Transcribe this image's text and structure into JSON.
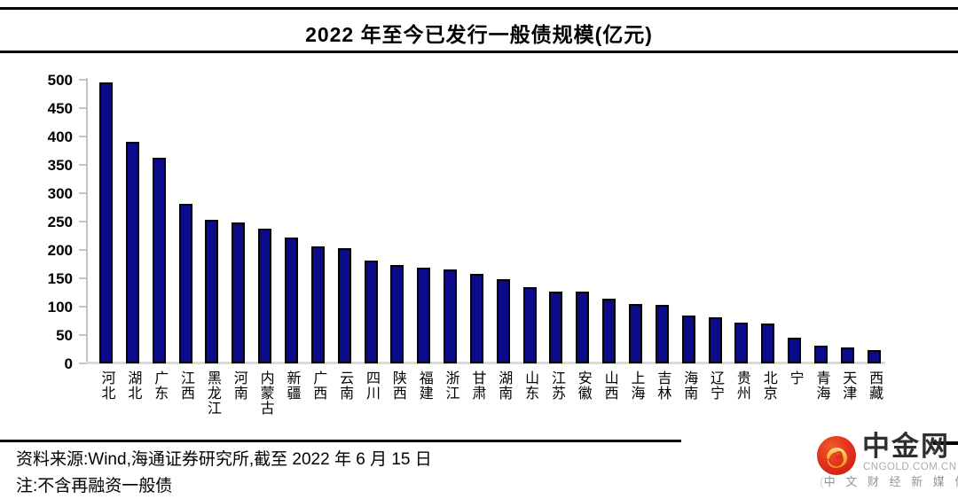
{
  "chart": {
    "title": "2022 年至今已发行一般债规模(亿元)"
  },
  "chart_data": {
    "type": "bar",
    "title": "2022 年至今已发行一般债规模(亿元)",
    "categories": [
      "河北",
      "湖北",
      "广东",
      "江西",
      "黑龙江",
      "河南",
      "内蒙古",
      "新疆",
      "广西",
      "云南",
      "四川",
      "陕西",
      "福建",
      "浙江",
      "甘肃",
      "湖南",
      "山东",
      "江苏",
      "安徽",
      "山西",
      "上海",
      "吉林",
      "海南",
      "辽宁",
      "贵州",
      "北京",
      "宁",
      "青海",
      "天津",
      "西藏"
    ],
    "values": [
      495,
      390,
      362,
      281,
      253,
      248,
      238,
      222,
      206,
      203,
      181,
      173,
      168,
      165,
      158,
      149,
      135,
      127,
      126,
      114,
      105,
      103,
      84,
      82,
      72,
      70,
      45,
      31,
      28,
      23
    ],
    "xlabel": "",
    "ylabel": "",
    "ylim": [
      0,
      500
    ],
    "yticks": [
      500,
      450,
      400,
      350,
      300,
      250,
      200,
      150,
      100,
      50,
      0
    ],
    "grid": false,
    "legend": null,
    "bar_color": "#0b0b8c",
    "bar_border_color": "#000000"
  },
  "footer": {
    "source": "资料来源:Wind,海通证券研究所,截至 2022 年 6 月 15 日",
    "note": "注:不含再融资一般债"
  },
  "logo": {
    "name": "中金网",
    "domain": "CNGOLD.COM.CN",
    "tagline": "中 文 财 经 新 媒 体",
    "decor_left": "(",
    "decor_right": ")",
    "icon_red": "#e2311d",
    "icon_gold": "#f9b234"
  }
}
